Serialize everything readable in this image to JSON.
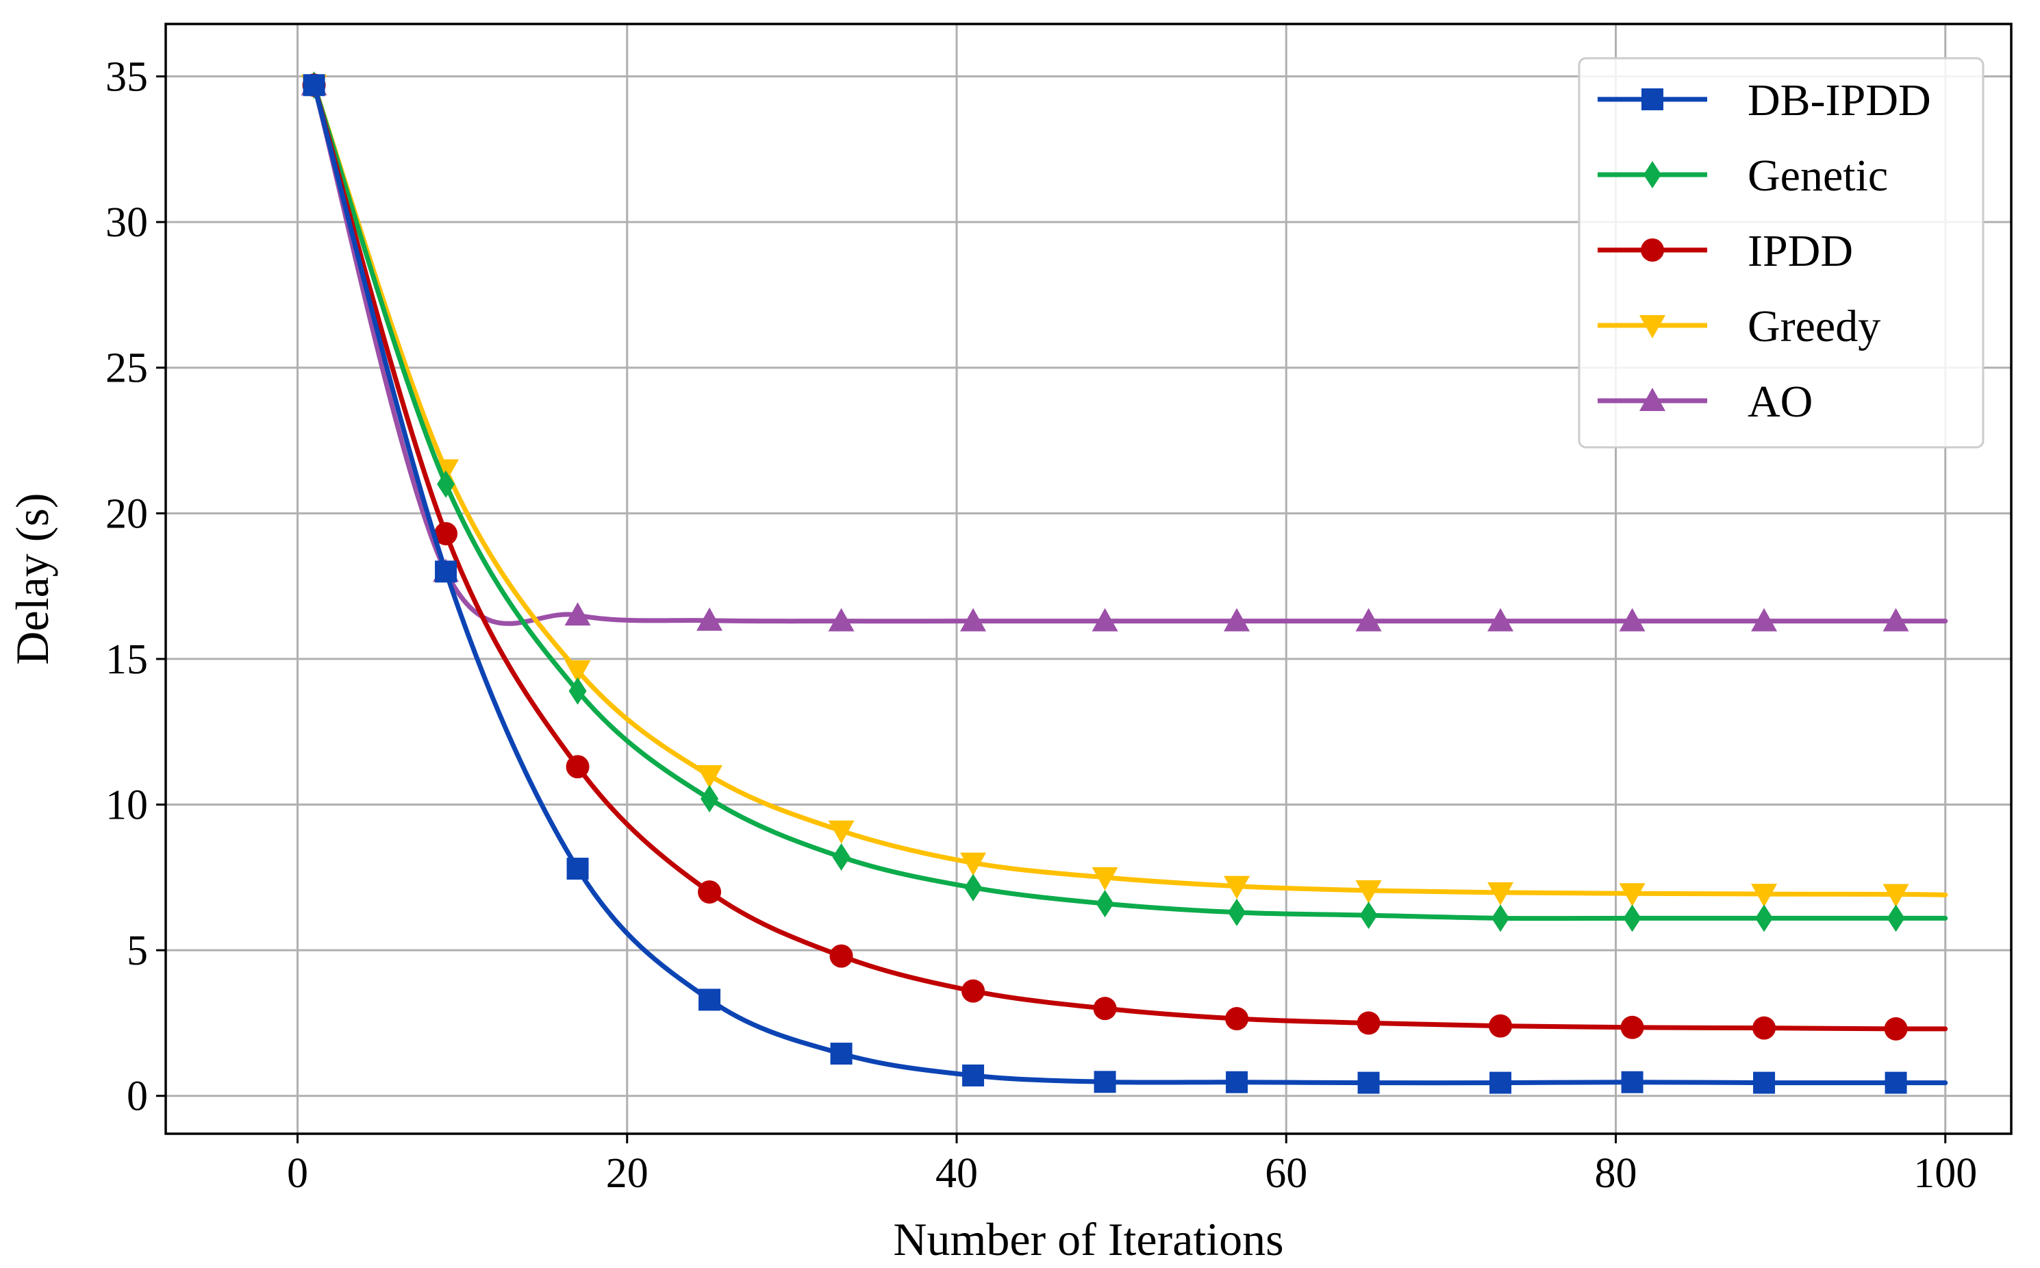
{
  "chart_data": {
    "type": "line",
    "title": "",
    "xlabel": "Number of Iterations",
    "ylabel": "Delay (s)",
    "xlim": [
      -8,
      104
    ],
    "ylim": [
      -1.3,
      36.8
    ],
    "xticks": [
      0,
      20,
      40,
      60,
      80,
      100
    ],
    "yticks": [
      0,
      5,
      10,
      15,
      20,
      25,
      30,
      35
    ],
    "xtick_labels": [
      "0",
      "20",
      "40",
      "60",
      "80",
      "100"
    ],
    "ytick_labels": [
      "0",
      "5",
      "10",
      "15",
      "20",
      "25",
      "30",
      "35"
    ],
    "grid": true,
    "legend_position": "top-right",
    "x": [
      1,
      9,
      17,
      25,
      33,
      41,
      49,
      57,
      65,
      73,
      81,
      89,
      97,
      100
    ],
    "series": [
      {
        "name": "DB-IPDD",
        "color": "#0c44b4",
        "marker": "square",
        "values": [
          34.7,
          18.0,
          7.8,
          3.3,
          1.45,
          0.7,
          0.48,
          0.47,
          0.45,
          0.45,
          0.47,
          0.45,
          0.45,
          0.45
        ]
      },
      {
        "name": "Genetic",
        "color": "#0cab4b",
        "marker": "diamond",
        "values": [
          34.7,
          21.0,
          13.9,
          10.2,
          8.2,
          7.15,
          6.6,
          6.3,
          6.2,
          6.1,
          6.1,
          6.1,
          6.1,
          6.1
        ]
      },
      {
        "name": "IPDD",
        "color": "#c00000",
        "marker": "circle",
        "values": [
          34.7,
          19.3,
          11.3,
          7.0,
          4.8,
          3.6,
          3.0,
          2.65,
          2.5,
          2.4,
          2.35,
          2.33,
          2.3,
          2.3
        ]
      },
      {
        "name": "Greedy",
        "color": "#ffc000",
        "marker": "triangle-down",
        "values": [
          34.7,
          21.5,
          14.6,
          11.0,
          9.1,
          8.0,
          7.5,
          7.2,
          7.05,
          6.98,
          6.95,
          6.93,
          6.92,
          6.9
        ]
      },
      {
        "name": "AO",
        "color": "#9b4fa7",
        "marker": "triangle-up",
        "values": [
          34.7,
          18.0,
          16.5,
          16.32,
          16.3,
          16.3,
          16.3,
          16.3,
          16.3,
          16.3,
          16.3,
          16.3,
          16.3,
          16.3
        ]
      }
    ]
  }
}
